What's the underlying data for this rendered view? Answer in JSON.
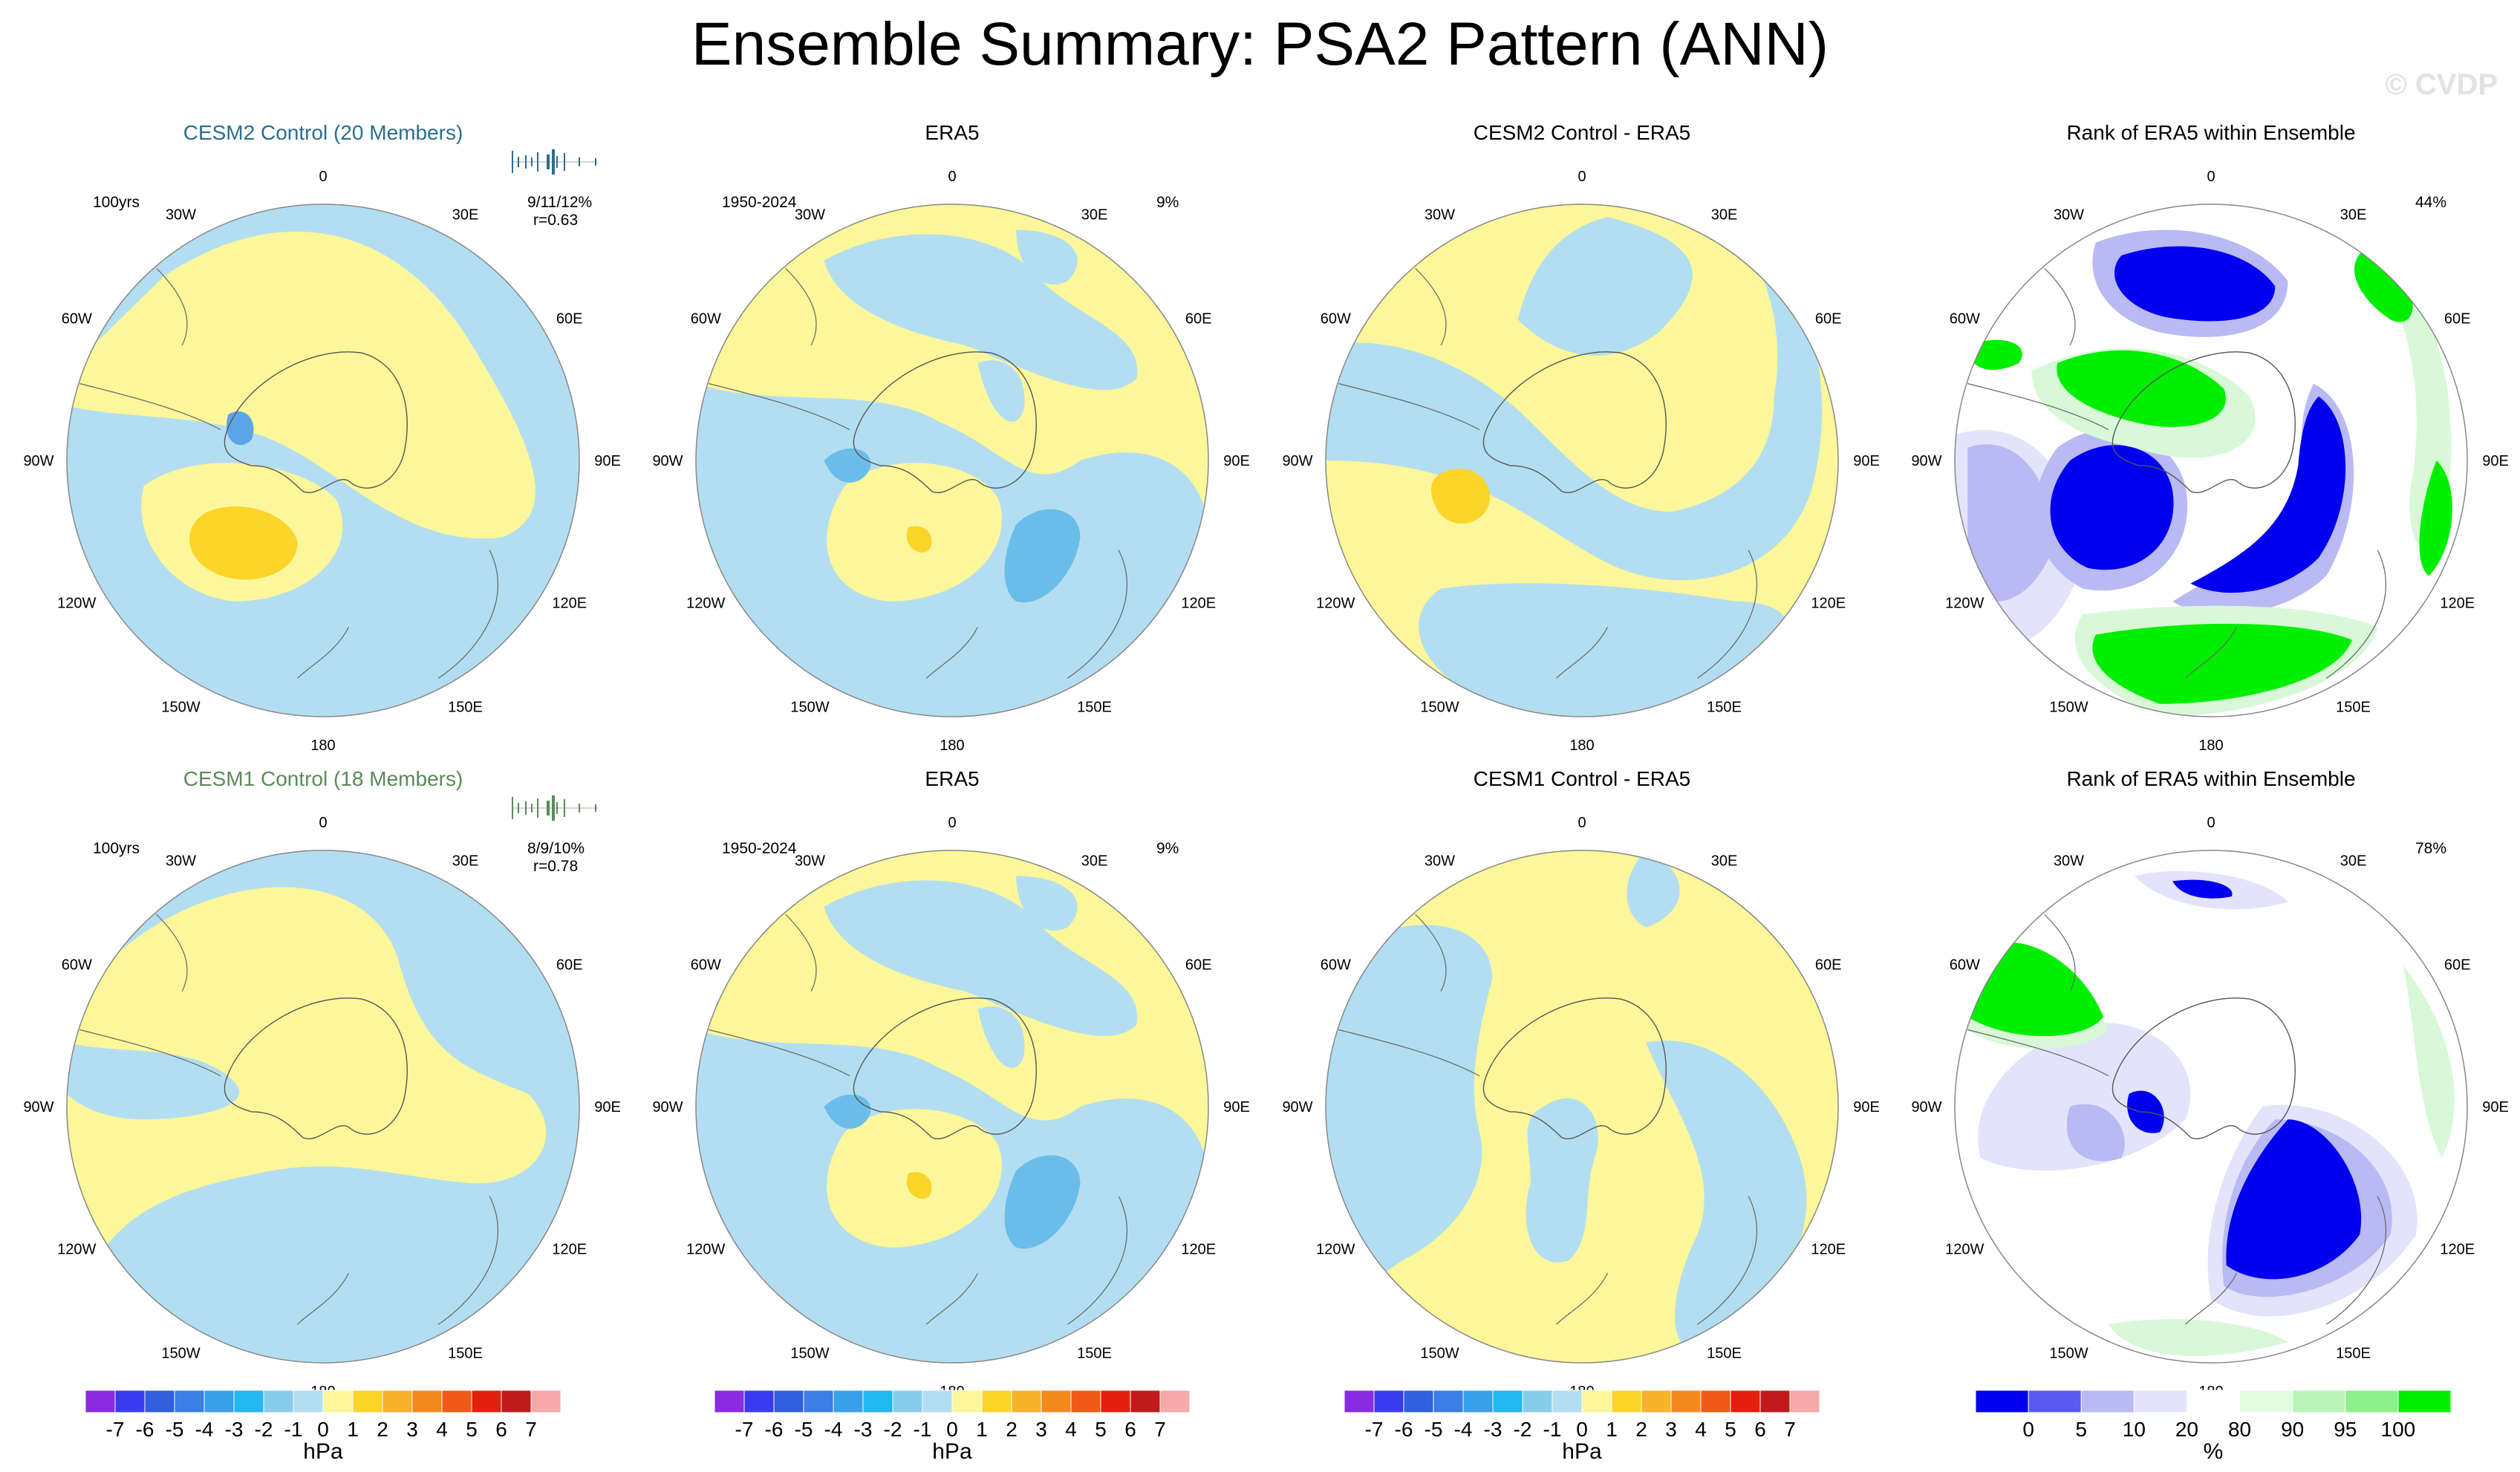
{
  "title": "Ensemble Summary: PSA2 Pattern (ANN)",
  "watermark": "© CVDP",
  "lon_labels": [
    "0",
    "30E",
    "60E",
    "90E",
    "120E",
    "150E",
    "180",
    "150W",
    "120W",
    "90W",
    "60W",
    "30W"
  ],
  "colors": {
    "neg": "#b3def2",
    "pos": "#fbf79a",
    "neg_strong": "#6bbde9",
    "neg_mid": "#5ba4e6",
    "pos_strong": "#fcd42a",
    "rank_blue": "#0000ee",
    "rank_light": "#b9b9f4",
    "rank_pale": "#e3e3fb",
    "rank_green": "#00ee00",
    "rank_lightgreen": "#d8f8d8"
  },
  "panels": [
    {
      "id": "r1c1",
      "title": "CESM2 Control (20 Members)",
      "title_color": "#2c6e8e",
      "left_label": "100yrs",
      "right_label": "9/11/12%",
      "right_label2": "r=0.63",
      "spark_color": "#2c6e8e"
    },
    {
      "id": "r1c2",
      "title": "ERA5",
      "title_color": "#000000",
      "left_label": "1950-2024",
      "right_label": "9%",
      "right_label2": ""
    },
    {
      "id": "r1c3",
      "title": "CESM2 Control - ERA5",
      "title_color": "#000000",
      "left_label": "",
      "right_label": "",
      "right_label2": ""
    },
    {
      "id": "r1c4",
      "title": "Rank of ERA5 within Ensemble",
      "title_color": "#000000",
      "left_label": "",
      "right_label": "44%",
      "right_label2": ""
    },
    {
      "id": "r2c1",
      "title": "CESM1 Control (18 Members)",
      "title_color": "#5a8a5a",
      "left_label": "100yrs",
      "right_label": "8/9/10%",
      "right_label2": "r=0.78",
      "spark_color": "#5a8a5a"
    },
    {
      "id": "r2c2",
      "title": "ERA5",
      "title_color": "#000000",
      "left_label": "1950-2024",
      "right_label": "9%",
      "right_label2": ""
    },
    {
      "id": "r2c3",
      "title": "CESM1 Control - ERA5",
      "title_color": "#000000",
      "left_label": "",
      "right_label": "",
      "right_label2": ""
    },
    {
      "id": "r2c4",
      "title": "Rank of ERA5 within Ensemble",
      "title_color": "#000000",
      "left_label": "",
      "right_label": "78%",
      "right_label2": ""
    }
  ],
  "colorbars": [
    {
      "id": "cb1",
      "unit": "hPa",
      "ticks": [
        "-7",
        "-6",
        "-5",
        "-4",
        "-3",
        "-2",
        "-1",
        "0",
        "1",
        "2",
        "3",
        "4",
        "5",
        "6",
        "7"
      ],
      "colors": [
        "#8a2be2",
        "#3a3aee",
        "#3060e0",
        "#3a7ee6",
        "#3aa0ec",
        "#22b8f0",
        "#88ccec",
        "#b3def2",
        "#fbf79a",
        "#fcd42a",
        "#f9b32a",
        "#f48a1e",
        "#ef5a18",
        "#e3200e",
        "#c01a1a",
        "#f7a8a8"
      ]
    },
    {
      "id": "cb2",
      "unit": "hPa",
      "ticks": [
        "-7",
        "-6",
        "-5",
        "-4",
        "-3",
        "-2",
        "-1",
        "0",
        "1",
        "2",
        "3",
        "4",
        "5",
        "6",
        "7"
      ],
      "colors": [
        "#8a2be2",
        "#3a3aee",
        "#3060e0",
        "#3a7ee6",
        "#3aa0ec",
        "#22b8f0",
        "#88ccec",
        "#b3def2",
        "#fbf79a",
        "#fcd42a",
        "#f9b32a",
        "#f48a1e",
        "#ef5a18",
        "#e3200e",
        "#c01a1a",
        "#f7a8a8"
      ]
    },
    {
      "id": "cb3",
      "unit": "hPa",
      "ticks": [
        "-7",
        "-6",
        "-5",
        "-4",
        "-3",
        "-2",
        "-1",
        "0",
        "1",
        "2",
        "3",
        "4",
        "5",
        "6",
        "7"
      ],
      "colors": [
        "#8a2be2",
        "#3a3aee",
        "#3060e0",
        "#3a7ee6",
        "#3aa0ec",
        "#22b8f0",
        "#88ccec",
        "#b3def2",
        "#fbf79a",
        "#fcd42a",
        "#f9b32a",
        "#f48a1e",
        "#ef5a18",
        "#e3200e",
        "#c01a1a",
        "#f7a8a8"
      ]
    },
    {
      "id": "cb4",
      "unit": "%",
      "ticks": [
        "0",
        "5",
        "10",
        "20",
        "80",
        "90",
        "95",
        "100"
      ],
      "colors": [
        "#0000ee",
        "#5a5af0",
        "#b9b9f4",
        "#e3e3fb",
        "#ffffff",
        "#e3fbe3",
        "#b8f4b8",
        "#8cf08c",
        "#00ee00"
      ]
    }
  ],
  "chart_data": {
    "type": "polar-map panel grid",
    "title": "Ensemble Summary: PSA2 Pattern (ANN)",
    "units": [
      "hPa",
      "%"
    ],
    "contour_levels_hPa": [
      -7,
      -6,
      -5,
      -4,
      -3,
      -2,
      -1,
      0,
      1,
      2,
      3,
      4,
      5,
      6,
      7
    ],
    "rank_levels_pct": [
      0,
      5,
      10,
      20,
      80,
      90,
      95,
      100
    ],
    "pattern_correlations": {
      "CESM2 Control": 0.63,
      "CESM1 Control": 0.78
    },
    "explained_variance_pct": {
      "CESM2 Control": "9/11/12%",
      "CESM1 Control": "8/9/10%",
      "ERA5": "9%"
    },
    "rank_summary_pct": {
      "CESM2 Control": 44,
      "CESM1 Control": 78
    }
  }
}
